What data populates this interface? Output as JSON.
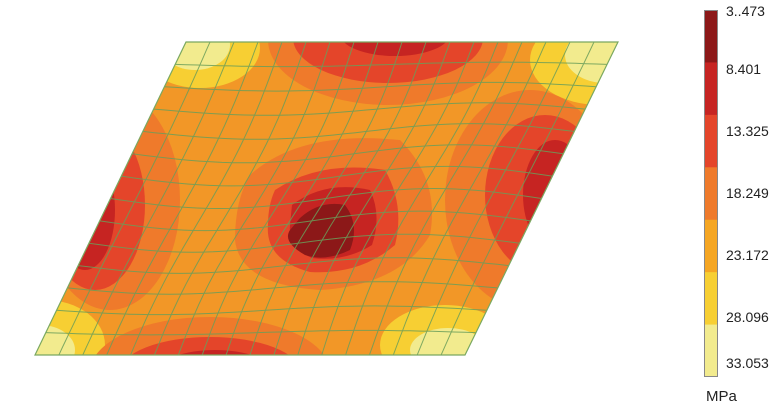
{
  "legend": {
    "labels": [
      "3..473",
      "8.401",
      "13.325",
      "18.249",
      "23.172",
      "28.096",
      "33.053"
    ],
    "colors": [
      "#8c1818",
      "#c62422",
      "#e4452a",
      "#ef7a2b",
      "#f5a623",
      "#f7cf33",
      "#f2eb8e"
    ],
    "unit": "MPa"
  }
}
